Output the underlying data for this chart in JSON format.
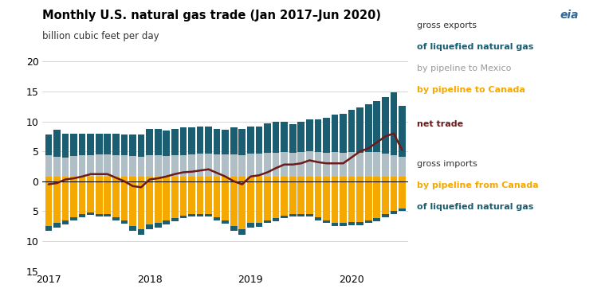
{
  "title": "Monthly U.S. natural gas trade (Jan 2017–Jun 2020)",
  "subtitle": "billion cubic feet per day",
  "ylim": [
    -15,
    20
  ],
  "colors": {
    "export_lng": "#1b5e72",
    "export_mexico": "#b0bec5",
    "export_canada": "#f5a800",
    "import_canada": "#f5a800",
    "import_lng": "#1b5e72",
    "net_trade": "#6d1a1a",
    "background": "#ffffff",
    "grid": "#d0d0d0"
  },
  "export_canada": [
    0.8,
    0.8,
    0.8,
    0.8,
    0.8,
    0.8,
    0.8,
    0.8,
    0.8,
    0.8,
    0.8,
    0.8,
    0.8,
    0.8,
    0.8,
    0.8,
    0.8,
    0.8,
    0.8,
    0.8,
    0.8,
    0.8,
    0.8,
    0.8,
    0.8,
    0.8,
    0.8,
    0.8,
    0.8,
    0.8,
    0.8,
    0.8,
    0.8,
    0.8,
    0.8,
    0.8,
    0.8,
    0.8,
    0.8,
    0.8,
    0.8,
    0.8,
    0.8
  ],
  "export_mexico": [
    3.5,
    3.3,
    3.2,
    3.4,
    3.5,
    3.6,
    3.7,
    3.7,
    3.6,
    3.5,
    3.4,
    3.3,
    3.5,
    3.5,
    3.4,
    3.5,
    3.6,
    3.7,
    3.8,
    3.8,
    3.7,
    3.7,
    3.7,
    3.6,
    3.8,
    3.8,
    3.9,
    4.0,
    4.1,
    3.9,
    4.1,
    4.2,
    4.1,
    4.0,
    4.1,
    4.0,
    4.1,
    4.0,
    4.1,
    4.1,
    3.8,
    3.6,
    3.3
  ],
  "export_lng": [
    3.5,
    4.5,
    4.0,
    3.8,
    3.7,
    3.6,
    3.5,
    3.5,
    3.5,
    3.5,
    3.6,
    3.7,
    4.5,
    4.5,
    4.3,
    4.5,
    4.6,
    4.5,
    4.5,
    4.5,
    4.3,
    4.1,
    4.5,
    4.4,
    4.5,
    4.5,
    5.0,
    5.2,
    5.0,
    4.8,
    5.1,
    5.4,
    5.5,
    5.8,
    6.2,
    6.5,
    7.0,
    7.5,
    8.0,
    8.5,
    9.5,
    10.5,
    8.5
  ],
  "import_canada": [
    -7.5,
    -7.0,
    -6.5,
    -6.0,
    -5.5,
    -5.2,
    -5.5,
    -5.5,
    -6.0,
    -6.5,
    -7.5,
    -8.0,
    -7.2,
    -7.0,
    -6.5,
    -6.2,
    -5.8,
    -5.5,
    -5.5,
    -5.5,
    -6.0,
    -6.5,
    -7.5,
    -8.0,
    -7.0,
    -7.0,
    -6.5,
    -6.2,
    -5.8,
    -5.5,
    -5.5,
    -5.5,
    -6.0,
    -6.5,
    -7.0,
    -7.0,
    -6.8,
    -6.8,
    -6.5,
    -6.2,
    -5.5,
    -5.0,
    -4.5
  ],
  "import_lng": [
    -0.8,
    -0.8,
    -0.7,
    -0.6,
    -0.5,
    -0.4,
    -0.4,
    -0.4,
    -0.5,
    -0.6,
    -0.8,
    -1.0,
    -0.8,
    -0.8,
    -0.7,
    -0.5,
    -0.4,
    -0.4,
    -0.4,
    -0.4,
    -0.5,
    -0.6,
    -0.8,
    -0.9,
    -0.7,
    -0.6,
    -0.5,
    -0.5,
    -0.4,
    -0.4,
    -0.4,
    -0.4,
    -0.5,
    -0.5,
    -0.5,
    -0.5,
    -0.5,
    -0.5,
    -0.5,
    -0.5,
    -0.5,
    -0.5,
    -0.5
  ],
  "net_trade": [
    -0.5,
    -0.3,
    0.3,
    0.5,
    0.8,
    1.2,
    1.2,
    1.2,
    0.6,
    0.0,
    -0.8,
    -1.0,
    0.3,
    0.5,
    0.8,
    1.2,
    1.5,
    1.6,
    1.8,
    2.0,
    1.4,
    0.8,
    0.0,
    -0.5,
    0.8,
    1.0,
    1.5,
    2.2,
    2.8,
    2.8,
    3.0,
    3.5,
    3.2,
    3.0,
    3.0,
    3.0,
    4.0,
    5.0,
    5.5,
    6.5,
    7.5,
    8.0,
    5.2
  ],
  "n_months": 43,
  "xtick_positions": [
    0,
    12,
    24,
    36
  ],
  "xtick_labels": [
    "2017",
    "2018",
    "2019",
    "2020"
  ]
}
